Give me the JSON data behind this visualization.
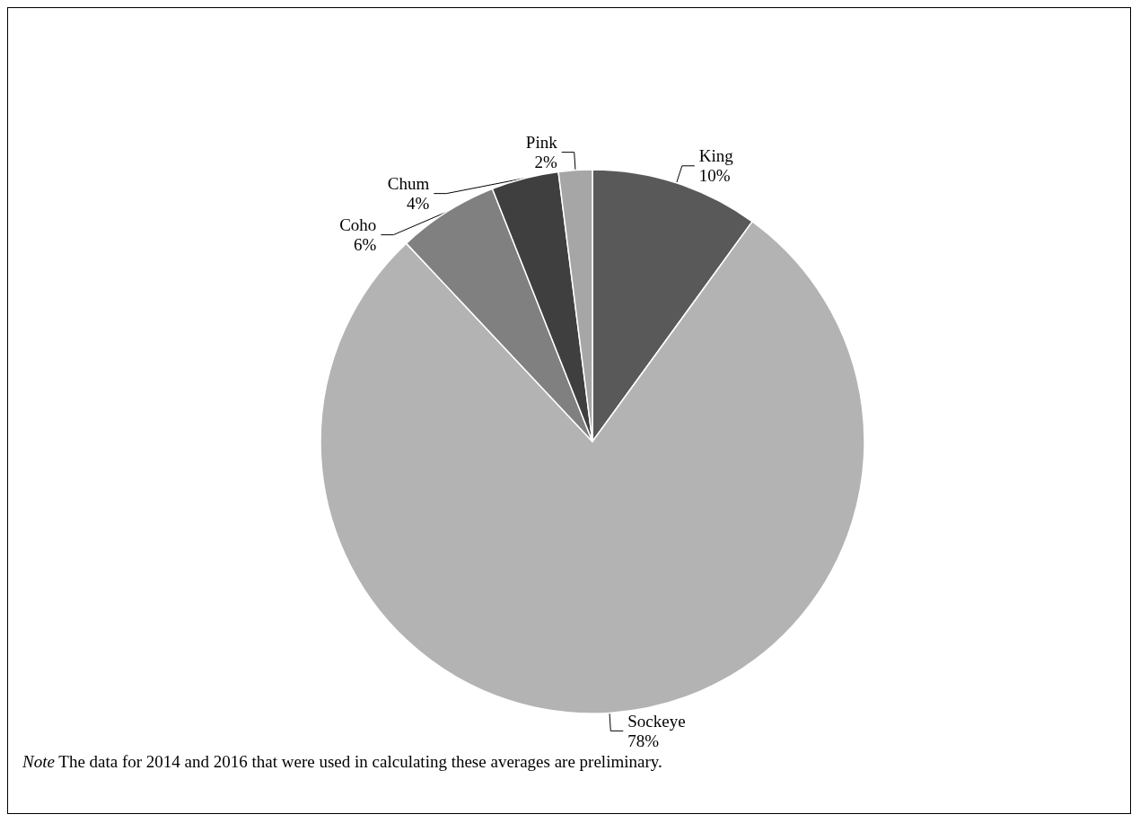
{
  "chart_data": {
    "type": "pie",
    "categories": [
      "King",
      "Sockeye",
      "Coho",
      "Chum",
      "Pink"
    ],
    "values": [
      10,
      78,
      6,
      4,
      2
    ],
    "value_labels": [
      "10%",
      "78%",
      "6%",
      "4%",
      "2%"
    ],
    "colors": [
      "#595959",
      "#b3b3b3",
      "#808080",
      "#3f3f3f",
      "#a6a6a6"
    ],
    "legend": false,
    "annotations": [
      "Note The data for 2014 and 2016 that were used in calculating these averages are preliminary."
    ]
  }
}
